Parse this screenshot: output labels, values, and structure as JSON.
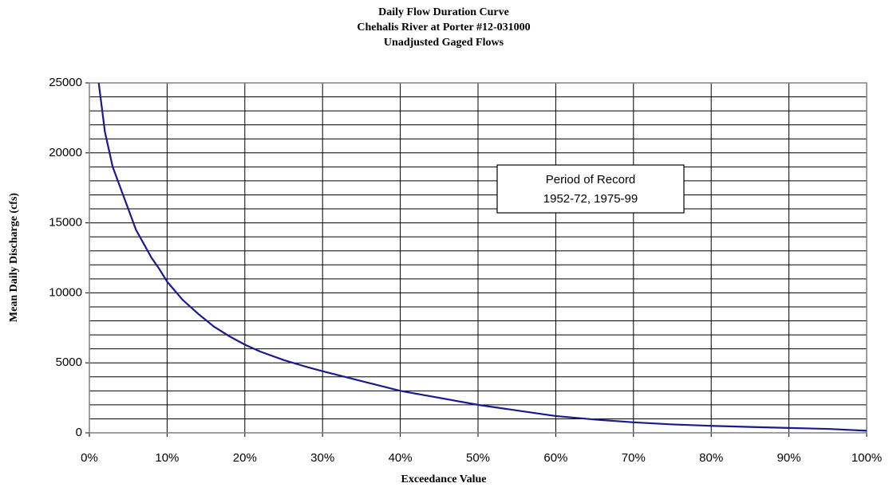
{
  "chart_data": {
    "type": "line",
    "title": [
      "Daily Flow Duration Curve",
      "Chehalis River at Porter #12-031000",
      "Unadjusted Gaged Flows"
    ],
    "x_label": "Exceedance Value",
    "y_label": "Mean Daily Discharge (cfs)",
    "annotation": [
      "Period of Record",
      "1952-72, 1975-99"
    ],
    "x": [
      1.2,
      2,
      3,
      4,
      5,
      6,
      7,
      8,
      9,
      10,
      12,
      14,
      16,
      18,
      20,
      22,
      25,
      28,
      30,
      35,
      40,
      45,
      50,
      55,
      60,
      65,
      70,
      75,
      80,
      85,
      90,
      95,
      100
    ],
    "series": [
      {
        "color": "#1a1a8c",
        "values": [
          25000,
          21500,
          19000,
          17500,
          16000,
          14500,
          13500,
          12500,
          11700,
          10800,
          9500,
          8500,
          7600,
          6900,
          6300,
          5800,
          5200,
          4700,
          4400,
          3700,
          3000,
          2500,
          2000,
          1600,
          1200,
          950,
          750,
          600,
          500,
          420,
          350,
          280,
          150
        ]
      }
    ],
    "xlim": [
      0,
      100
    ],
    "xticks": [
      {
        "value": 0,
        "label": "0%"
      },
      {
        "value": 10,
        "label": "10%"
      },
      {
        "value": 20,
        "label": "20%"
      },
      {
        "value": 30,
        "label": "30%"
      },
      {
        "value": 40,
        "label": "40%"
      },
      {
        "value": 50,
        "label": "50%"
      },
      {
        "value": 60,
        "label": "60%"
      },
      {
        "value": 70,
        "label": "70%"
      },
      {
        "value": 80,
        "label": "80%"
      },
      {
        "value": 90,
        "label": "90%"
      },
      {
        "value": 100,
        "label": "100%"
      }
    ],
    "ylim": [
      0,
      25000
    ],
    "yticks": [
      0,
      5000,
      10000,
      15000,
      20000,
      25000
    ],
    "y_minor_ticks": [
      1000,
      2000,
      3000,
      4000,
      6000,
      7000,
      8000,
      9000,
      11000,
      12000,
      13000,
      14000,
      16000,
      17000,
      18000,
      19000,
      21000,
      22000,
      23000,
      24000
    ],
    "grid": true
  }
}
